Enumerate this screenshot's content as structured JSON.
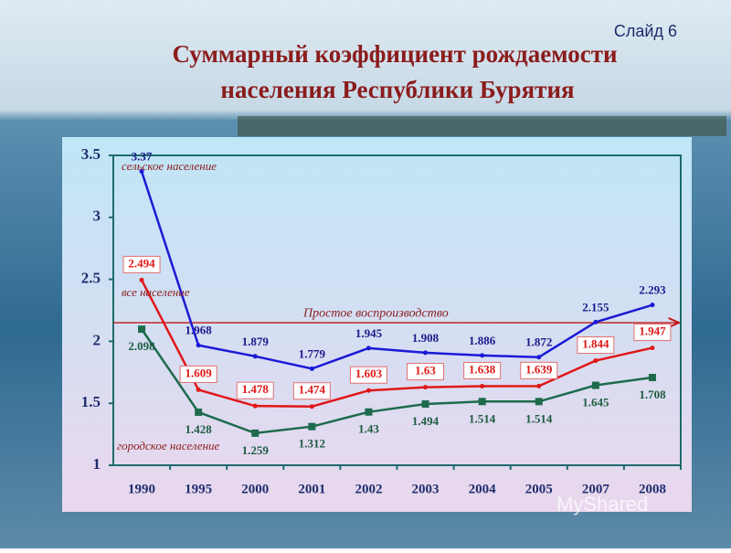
{
  "slide_label": "Слайд 6",
  "chart_data": {
    "type": "line",
    "title": [
      "Суммарный коэффициент рождаемости",
      "населения Республики Бурятия"
    ],
    "categories": [
      "1990",
      "1995",
      "2000",
      "2001",
      "2002",
      "2003",
      "2004",
      "2005",
      "2007",
      "2008"
    ],
    "series": [
      {
        "name": "сельское население",
        "color": "#1a1ad6",
        "values": [
          3.37,
          1.968,
          1.879,
          1.779,
          1.945,
          1.908,
          1.886,
          1.872,
          2.155,
          2.293
        ]
      },
      {
        "name": "все население",
        "color": "#e01818",
        "values": [
          2.494,
          1.609,
          1.478,
          1.474,
          1.603,
          1.63,
          1.638,
          1.639,
          1.844,
          1.947
        ]
      },
      {
        "name": "городское население",
        "color": "#1d6b4c",
        "values": [
          2.098,
          1.428,
          1.259,
          1.312,
          1.43,
          1.494,
          1.514,
          1.514,
          1.645,
          1.708
        ]
      }
    ],
    "reference_line": {
      "value": 2.15,
      "label": "Простое воспроизводство"
    },
    "ylim": [
      1,
      3.5
    ],
    "yticks": [
      1,
      1.5,
      2,
      2.5,
      3,
      3.5
    ]
  },
  "watermark": "MyShared"
}
